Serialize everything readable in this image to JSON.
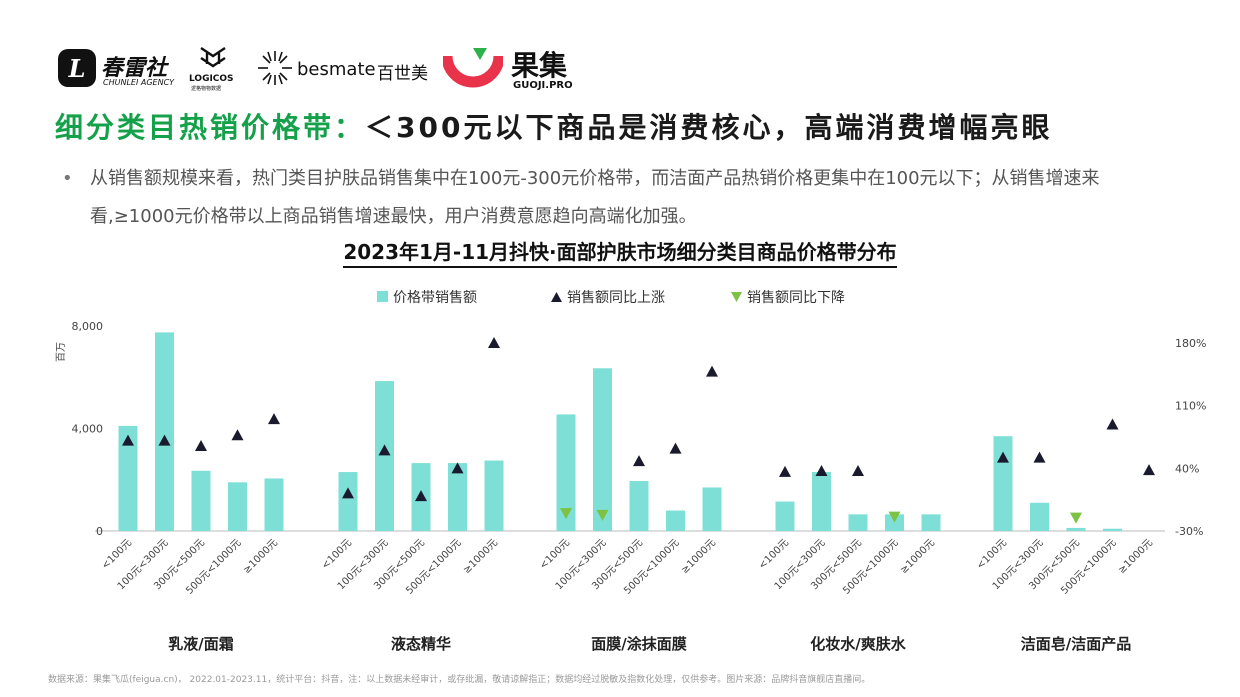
{
  "logos": {
    "chunlei_cn": "春雷社",
    "chunlei_en": "CHUNLEI AGENCY",
    "logicos": "LOGICOS",
    "logicos_cn": "逻格物物数据",
    "besmate": "besmate",
    "besmate_cn": "百世美",
    "guoji_cn": "果集",
    "guoji_en": "GUOJI.PRO"
  },
  "headline": {
    "accent": "细分类目热销价格带：",
    "rest": "＜300元以下商品是消费核心，高端消费增幅亮眼"
  },
  "bullet": {
    "dot": "•",
    "text": "从销售额规模来看，热门类目护肤品销售集中在100元-300元价格带，而洁面产品热销价格更集中在100元以下；从销售增速来看,≥1000元价格带以上商品销售增速最快，用户消费意愿趋向高端化加强。"
  },
  "chart_title": "2023年1月-11月抖快·面部护肤市场细分类目商品价格带分布",
  "colors": {
    "bar": "#7ddfd5",
    "up": "#1a1a2e",
    "down": "#7dc242",
    "axis": "#bbbbbb"
  },
  "chart_data": {
    "type": "bar",
    "legend": [
      "价格带销售额",
      "销售额同比上涨",
      "销售额同比下降"
    ],
    "legend_position": "top-center",
    "y_left": {
      "label": "百万",
      "ticks": [
        "0",
        "4,000",
        "8,000"
      ],
      "range": [
        0,
        8000
      ]
    },
    "y_right": {
      "ticks": [
        "-30%",
        "40%",
        "110%",
        "180%"
      ],
      "range": [
        -30,
        200
      ]
    },
    "groups": [
      {
        "name": "乳液/面霜",
        "categories": [
          "<100元",
          "100元<300元",
          "300元<500元",
          "500元<1000元",
          "≥1000元"
        ],
        "sales": [
          4100,
          7750,
          2350,
          1900,
          2050
        ],
        "yoy": [
          71,
          71,
          65,
          77,
          95
        ],
        "trend": [
          "up",
          "up",
          "up",
          "up",
          "up"
        ]
      },
      {
        "name": "液态精华",
        "categories": [
          "<100元",
          "100元<300元",
          "300元<500元",
          "500元<1000元",
          "≥1000元"
        ],
        "sales": [
          2300,
          5850,
          2650,
          2650,
          2750
        ],
        "yoy": [
          12,
          60,
          9,
          40,
          180
        ],
        "trend": [
          "up",
          "up",
          "up",
          "up",
          "up"
        ]
      },
      {
        "name": "面膜/涂抹面膜",
        "categories": [
          "<100元",
          "100元<300元",
          "300元<500元",
          "500元<1000元",
          "≥1000元"
        ],
        "sales": [
          4550,
          6350,
          1950,
          800,
          1700
        ],
        "yoy": [
          -10,
          -12,
          48,
          62,
          148
        ],
        "trend": [
          "down",
          "down",
          "up",
          "up",
          "up"
        ]
      },
      {
        "name": "化妆水/爽肤水",
        "categories": [
          "<100元",
          "100元<300元",
          "300元<500元",
          "500元<1000元",
          "≥1000元"
        ],
        "sales": [
          1150,
          2300,
          650,
          650,
          650
        ],
        "yoy": [
          36,
          37,
          37,
          -14,
          null
        ],
        "trend": [
          "up",
          "up",
          "up",
          "down",
          null
        ]
      },
      {
        "name": "洁面皂/洁面产品",
        "categories": [
          "<100元",
          "100元<300元",
          "300元<500元",
          "500元<1000元",
          "≥1000元"
        ],
        "sales": [
          3700,
          1100,
          120,
          90,
          0
        ],
        "yoy": [
          52,
          52,
          -15,
          89,
          38
        ],
        "trend": [
          "up",
          "up",
          "down",
          "up",
          "up"
        ]
      }
    ]
  },
  "footnote": "数据来源：果集飞瓜(feigua.cn)， 2022.01-2023.11，统计平台：抖音，注：以上数据未经审计，或存纰漏，敬请谅解指正；数据均经过脱敏及指数化处理，仅供参考。图片来源：品牌抖音旗舰店直播间。"
}
